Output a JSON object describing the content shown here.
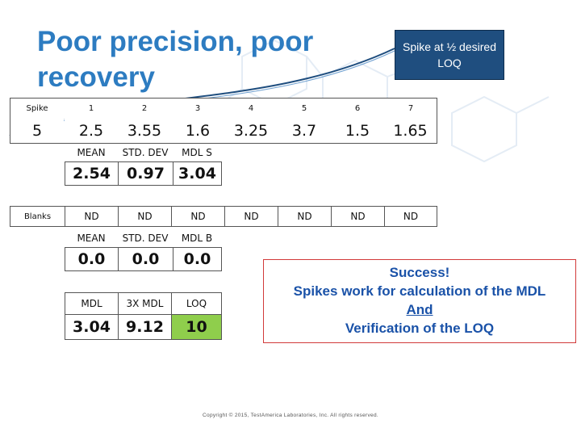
{
  "slide": {
    "title": "Poor precision, poor recovery",
    "callout": "Spike at ½ desired LOQ",
    "colors": {
      "title": "#2d7cc1",
      "callout_bg": "#1f4e7f",
      "loq_green": "#8fce4c",
      "success_text": "#1a52a8",
      "success_border": "#d23a3a"
    }
  },
  "spike_table": {
    "row_label": "Spike",
    "headers": [
      "1",
      "2",
      "3",
      "4",
      "5",
      "6",
      "7"
    ],
    "spike_level": "5",
    "values": [
      "2.5",
      "3.55",
      "1.6",
      "3.25",
      "3.7",
      "1.5",
      "1.65"
    ]
  },
  "spike_stats": {
    "headers": [
      "MEAN",
      "STD. DEV",
      "MDL S"
    ],
    "values": [
      "2.54",
      "0.97",
      "3.04"
    ]
  },
  "blanks": {
    "label": "Blanks",
    "values": [
      "ND",
      "ND",
      "ND",
      "ND",
      "ND",
      "ND",
      "ND"
    ]
  },
  "blank_stats": {
    "headers": [
      "MEAN",
      "STD. DEV",
      "MDL B"
    ],
    "values": [
      "0.0",
      "0.0",
      "0.0"
    ]
  },
  "loq_table": {
    "headers": [
      "MDL",
      "3X MDL",
      "LOQ"
    ],
    "values": [
      "3.04",
      "9.12",
      "10"
    ]
  },
  "success": {
    "line1": "Success!",
    "line2": "Spikes work for calculation of the MDL",
    "line3": "And",
    "line4": "Verification of the LOQ"
  },
  "footer": {
    "copyright": "Copyright © 2015, TestAmerica Laboratories, Inc. All rights reserved."
  }
}
